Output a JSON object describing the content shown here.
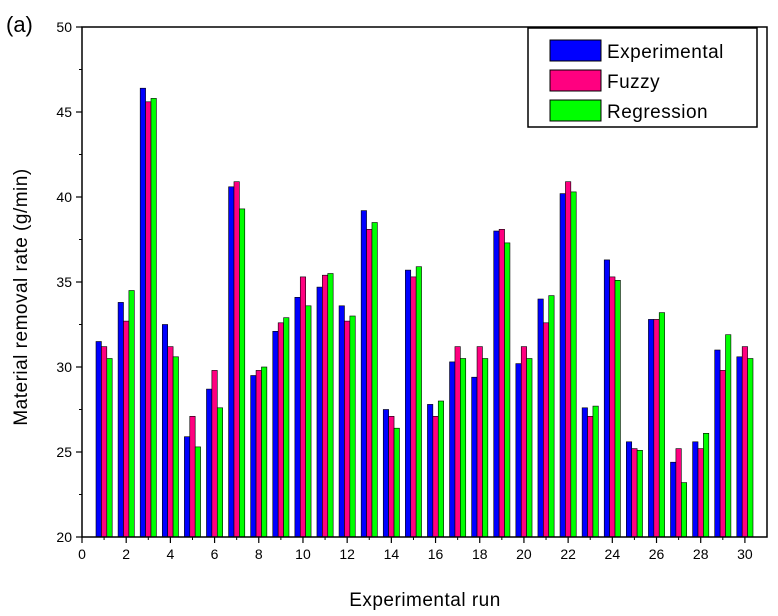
{
  "chart_data": {
    "type": "bar",
    "panel_label": "(a)",
    "xlabel": "Experimental run",
    "ylabel": "Material removal rate  (g/min)",
    "xlim": [
      0,
      31
    ],
    "ylim": [
      20,
      50
    ],
    "xticks": [
      0,
      2,
      4,
      6,
      8,
      10,
      12,
      14,
      16,
      18,
      20,
      22,
      24,
      26,
      28,
      30
    ],
    "yticks": [
      20,
      25,
      30,
      35,
      40,
      45,
      50
    ],
    "legend_position": "top-right",
    "categories": [
      1,
      2,
      3,
      4,
      5,
      6,
      7,
      8,
      9,
      10,
      11,
      12,
      13,
      14,
      15,
      16,
      17,
      18,
      19,
      20,
      21,
      22,
      23,
      24,
      25,
      26,
      27,
      28,
      29,
      30
    ],
    "series": [
      {
        "name": "Experimental",
        "color": "#0000ff",
        "values": [
          31.5,
          33.8,
          46.4,
          32.5,
          25.9,
          28.7,
          40.6,
          29.5,
          32.1,
          34.1,
          34.7,
          33.6,
          39.2,
          27.5,
          35.7,
          27.8,
          30.3,
          29.4,
          38.0,
          30.2,
          34.0,
          40.2,
          27.6,
          36.3,
          25.6,
          32.8,
          24.4,
          25.6,
          31.0,
          30.6
        ]
      },
      {
        "name": "Fuzzy",
        "color": "#ff0080",
        "values": [
          31.2,
          32.7,
          45.6,
          31.2,
          27.1,
          29.8,
          40.9,
          29.8,
          32.6,
          35.3,
          35.4,
          32.7,
          38.1,
          27.1,
          35.3,
          27.1,
          31.2,
          31.2,
          38.1,
          31.2,
          32.6,
          40.9,
          27.1,
          35.3,
          25.2,
          32.8,
          25.2,
          25.2,
          29.8,
          31.2
        ]
      },
      {
        "name": "Regression",
        "color": "#00ff00",
        "values": [
          30.5,
          34.5,
          45.8,
          30.6,
          25.3,
          27.6,
          39.3,
          30.0,
          32.9,
          33.6,
          35.5,
          33.0,
          38.5,
          26.4,
          35.9,
          28.0,
          30.5,
          30.5,
          37.3,
          30.5,
          34.2,
          40.3,
          27.7,
          35.1,
          25.1,
          33.2,
          23.2,
          26.1,
          31.9,
          30.5
        ]
      }
    ]
  }
}
